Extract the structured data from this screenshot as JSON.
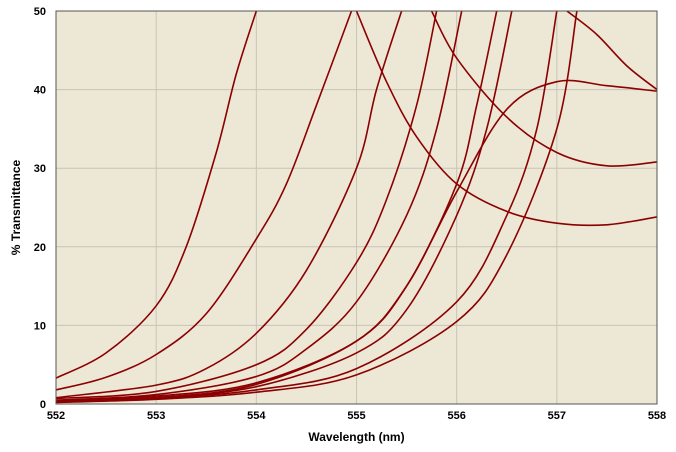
{
  "chart_data": {
    "type": "line",
    "title": "",
    "xlabel": "Wavelength (nm)",
    "ylabel": "% Transmittance",
    "xlim": [
      552,
      558
    ],
    "ylim": [
      0,
      50
    ],
    "x_ticks": [
      552,
      553,
      554,
      555,
      556,
      557,
      558
    ],
    "y_ticks": [
      0,
      10,
      20,
      30,
      40,
      50
    ],
    "grid": true,
    "legend": "none",
    "colors": {
      "plot_bg": "#ede7d6",
      "grid": "#c8c4b8",
      "line": "#8b0000",
      "frame": "#555555"
    },
    "series": [
      {
        "x": [
          552,
          552.5,
          553,
          553.3,
          553.6,
          553.8,
          554.0
        ],
        "values": [
          3.3,
          6.5,
          12.5,
          20,
          32,
          42,
          50
        ]
      },
      {
        "x": [
          552,
          552.5,
          553,
          553.5,
          554,
          554.3,
          554.6,
          554.95
        ],
        "values": [
          1.8,
          3.4,
          6.3,
          11.5,
          21,
          28,
          38,
          50
        ]
      },
      {
        "x": [
          552,
          553,
          553.5,
          554,
          554.5,
          555,
          555.2,
          555.45
        ],
        "values": [
          0.8,
          2.4,
          4.5,
          9,
          17,
          30,
          40,
          50
        ]
      },
      {
        "x": [
          552,
          553,
          554,
          554.5,
          555,
          555.3,
          555.6,
          555.8
        ],
        "values": [
          0.7,
          1.6,
          5,
          9.5,
          18,
          26,
          38,
          50
        ]
      },
      {
        "x": [
          552,
          553,
          554,
          554.5,
          555,
          555.5,
          555.8,
          556.05
        ],
        "values": [
          0.5,
          1.2,
          3.5,
          7,
          13,
          24,
          35,
          50
        ]
      },
      {
        "x": [
          552,
          553,
          554,
          555,
          555.5,
          556,
          556.2,
          556.4
        ],
        "values": [
          0.4,
          1,
          2.7,
          8,
          15,
          28,
          38,
          50
        ]
      },
      {
        "x": [
          552,
          553,
          554,
          555,
          555.5,
          556,
          556.3,
          556.55
        ],
        "values": [
          0.3,
          0.8,
          2.2,
          6.5,
          12,
          24,
          35,
          50
        ]
      },
      {
        "x": [
          552,
          553,
          554,
          555,
          556,
          556.5,
          556.8,
          557.0
        ],
        "values": [
          0.3,
          0.7,
          1.8,
          4.5,
          13,
          24,
          35,
          50
        ]
      },
      {
        "x": [
          552,
          553,
          554,
          555,
          556,
          556.5,
          557,
          557.2
        ],
        "values": [
          0.2,
          0.6,
          1.5,
          3.7,
          10.5,
          19,
          35,
          50
        ]
      },
      {
        "x": [
          552,
          553,
          554,
          555,
          555.5,
          556,
          556.5,
          557,
          557.5,
          558
        ],
        "values": [
          0.3,
          0.8,
          2.5,
          8,
          15,
          27,
          37.5,
          41,
          40.5,
          39.8
        ]
      },
      {
        "x": [
          555.0,
          555.3,
          555.6,
          556,
          556.5,
          557,
          557.5,
          558
        ],
        "values": [
          50,
          41,
          34,
          28,
          24.5,
          23,
          22.8,
          23.8
        ]
      },
      {
        "x": [
          555.75,
          556,
          556.5,
          557,
          557.5,
          558
        ],
        "values": [
          50,
          44,
          36.5,
          32,
          30.3,
          30.8
        ]
      },
      {
        "x": [
          557.1,
          557.4,
          557.7,
          558
        ],
        "values": [
          50,
          47,
          43,
          40
        ]
      }
    ]
  }
}
